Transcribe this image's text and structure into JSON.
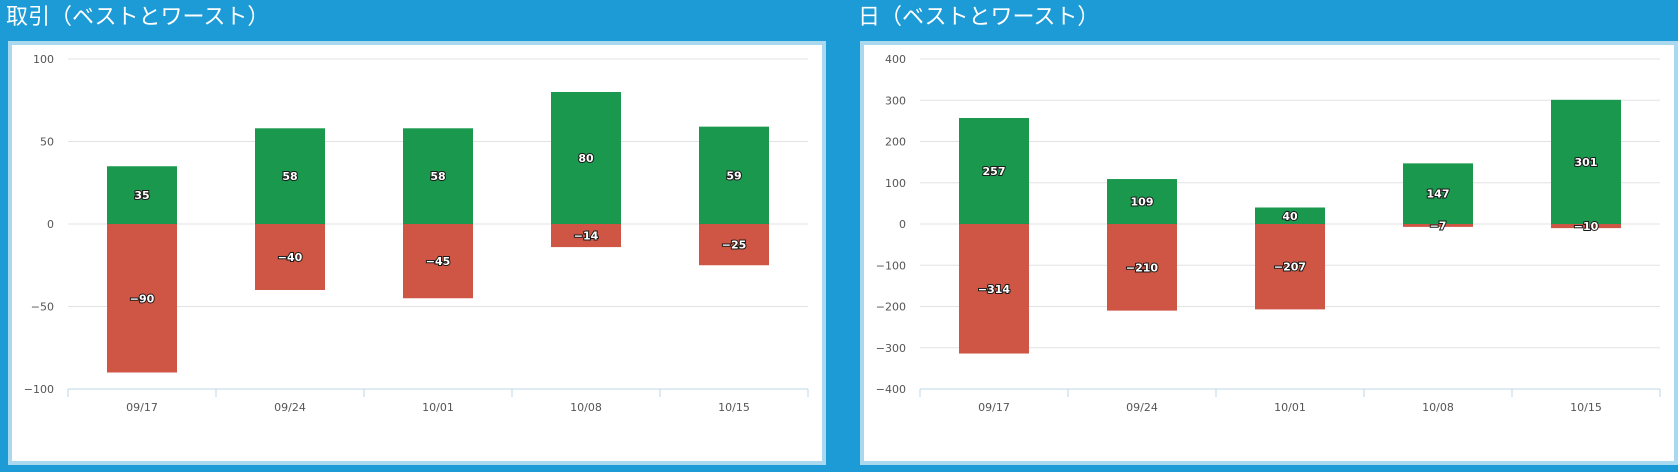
{
  "colors": {
    "background": "#1d9bd6",
    "positive": "#1a984e",
    "negative": "#cf5644",
    "grid": "#e3e3e3",
    "axis": "#bcd7e6"
  },
  "panels": [
    {
      "title": "取引（ベストとワースト）"
    },
    {
      "title": "日（ベストとワースト）"
    }
  ],
  "chart_data": [
    {
      "type": "bar",
      "title": "取引（ベストとワースト）",
      "categories": [
        "09/17",
        "09/24",
        "10/01",
        "10/08",
        "10/15"
      ],
      "series": [
        {
          "values": [
            35,
            58,
            58,
            80,
            59
          ],
          "color": "#1a984e"
        },
        {
          "values": [
            -90,
            -40,
            -45,
            -14,
            -25
          ],
          "color": "#cf5644"
        }
      ],
      "ylim": [
        -100,
        100
      ],
      "yticks": [
        100,
        50,
        0,
        -50,
        -100
      ],
      "grid": true,
      "stacked": true
    },
    {
      "type": "bar",
      "title": "日（ベストとワースト）",
      "categories": [
        "09/17",
        "09/24",
        "10/01",
        "10/08",
        "10/15"
      ],
      "series": [
        {
          "values": [
            257,
            109,
            40,
            147,
            301
          ],
          "color": "#1a984e"
        },
        {
          "values": [
            -314,
            -210,
            -207,
            -7,
            -10
          ],
          "color": "#cf5644"
        }
      ],
      "ylim": [
        -400,
        400
      ],
      "yticks": [
        400,
        300,
        200,
        100,
        0,
        -100,
        -200,
        -300,
        -400
      ],
      "grid": true,
      "stacked": true
    }
  ]
}
